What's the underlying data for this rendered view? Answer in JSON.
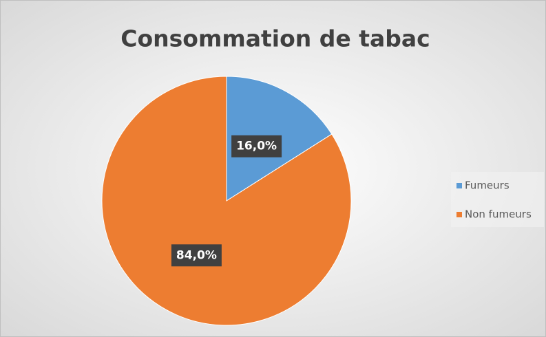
{
  "chart_data": {
    "type": "pie",
    "title": "Consommation de tabac",
    "categories": [
      "Fumeurs",
      "Non fumeurs"
    ],
    "values": [
      16,
      84
    ],
    "value_labels": [
      "16,0%",
      "84,0%"
    ],
    "colors": [
      "#5b9bd5",
      "#ed7d31"
    ],
    "legend": "right"
  }
}
